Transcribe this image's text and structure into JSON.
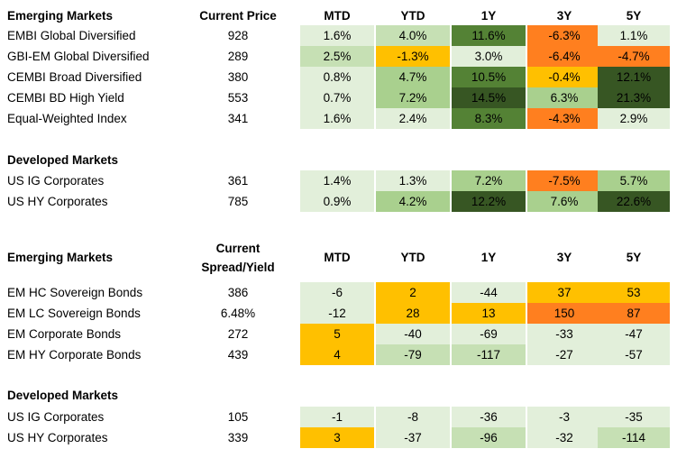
{
  "palette": {
    "g1": "#e2efda",
    "g2": "#c6e0b4",
    "g3": "#a9d08e",
    "g4": "#548235",
    "g5": "#375623",
    "o1": "#ffc000",
    "o2": "#f4b083",
    "o3": "#ff7f1f",
    "white": "#ffffff"
  },
  "top": {
    "header": {
      "title": "Emerging Markets",
      "price": "Current Price",
      "cols": [
        "MTD",
        "YTD",
        "1Y",
        "3Y",
        "5Y"
      ]
    },
    "em_rows": [
      {
        "name": "EMBI Global Diversified",
        "price": "928",
        "cells": [
          {
            "v": "1.6%",
            "c": "g1"
          },
          {
            "v": "4.0%",
            "c": "g2"
          },
          {
            "v": "11.6%",
            "c": "g4"
          },
          {
            "v": "-6.3%",
            "c": "o3"
          },
          {
            "v": "1.1%",
            "c": "g1"
          }
        ]
      },
      {
        "name": "GBI-EM Global Diversified",
        "price": "289",
        "cells": [
          {
            "v": "2.5%",
            "c": "g2"
          },
          {
            "v": "-1.3%",
            "c": "o1"
          },
          {
            "v": "3.0%",
            "c": "g1"
          },
          {
            "v": "-6.4%",
            "c": "o3"
          },
          {
            "v": "-4.7%",
            "c": "o3"
          }
        ]
      },
      {
        "name": "CEMBI Broad Diversified",
        "price": "380",
        "cells": [
          {
            "v": "0.8%",
            "c": "g1"
          },
          {
            "v": "4.7%",
            "c": "g3"
          },
          {
            "v": "10.5%",
            "c": "g4"
          },
          {
            "v": "-0.4%",
            "c": "o1"
          },
          {
            "v": "12.1%",
            "c": "g5"
          }
        ]
      },
      {
        "name": "CEMBI BD High Yield",
        "price": "553",
        "cells": [
          {
            "v": "0.7%",
            "c": "g1"
          },
          {
            "v": "7.2%",
            "c": "g3"
          },
          {
            "v": "14.5%",
            "c": "g5"
          },
          {
            "v": "6.3%",
            "c": "g3"
          },
          {
            "v": "21.3%",
            "c": "g5"
          }
        ]
      },
      {
        "name": "Equal-Weighted Index",
        "price": "341",
        "cells": [
          {
            "v": "1.6%",
            "c": "g1"
          },
          {
            "v": "2.4%",
            "c": "g1"
          },
          {
            "v": "8.3%",
            "c": "g4"
          },
          {
            "v": "-4.3%",
            "c": "o3"
          },
          {
            "v": "2.9%",
            "c": "g1"
          }
        ]
      }
    ],
    "dm_title": "Developed Markets",
    "dm_rows": [
      {
        "name": "US IG Corporates",
        "price": "361",
        "cells": [
          {
            "v": "1.4%",
            "c": "g1"
          },
          {
            "v": "1.3%",
            "c": "g1"
          },
          {
            "v": "7.2%",
            "c": "g3"
          },
          {
            "v": "-7.5%",
            "c": "o3"
          },
          {
            "v": "5.7%",
            "c": "g3"
          }
        ]
      },
      {
        "name": "US HY Corporates",
        "price": "785",
        "cells": [
          {
            "v": "0.9%",
            "c": "g1"
          },
          {
            "v": "4.2%",
            "c": "g3"
          },
          {
            "v": "12.2%",
            "c": "g5"
          },
          {
            "v": "7.6%",
            "c": "g3"
          },
          {
            "v": "22.6%",
            "c": "g5"
          }
        ]
      }
    ]
  },
  "bottom": {
    "header": {
      "title": "Emerging Markets",
      "price_l1": "Current",
      "price_l2": "Spread/Yield",
      "cols": [
        "MTD",
        "YTD",
        "1Y",
        "3Y",
        "5Y"
      ]
    },
    "em_rows": [
      {
        "name": "EM HC Sovereign Bonds",
        "price": "386",
        "cells": [
          {
            "v": "-6",
            "c": "g1"
          },
          {
            "v": "2",
            "c": "o1"
          },
          {
            "v": "-44",
            "c": "g1"
          },
          {
            "v": "37",
            "c": "o1"
          },
          {
            "v": "53",
            "c": "o1"
          }
        ]
      },
      {
        "name": "EM LC Sovereign Bonds",
        "price": "6.48%",
        "cells": [
          {
            "v": "-12",
            "c": "g1"
          },
          {
            "v": "28",
            "c": "o1"
          },
          {
            "v": "13",
            "c": "o1"
          },
          {
            "v": "150",
            "c": "o3"
          },
          {
            "v": "87",
            "c": "o3"
          }
        ]
      },
      {
        "name": "EM Corporate Bonds",
        "price": "272",
        "cells": [
          {
            "v": "5",
            "c": "o1"
          },
          {
            "v": "-40",
            "c": "g1"
          },
          {
            "v": "-69",
            "c": "g1"
          },
          {
            "v": "-33",
            "c": "g1"
          },
          {
            "v": "-47",
            "c": "g1"
          }
        ]
      },
      {
        "name": "EM HY Corporate Bonds",
        "price": "439",
        "cells": [
          {
            "v": "4",
            "c": "o1"
          },
          {
            "v": "-79",
            "c": "g2"
          },
          {
            "v": "-117",
            "c": "g2"
          },
          {
            "v": "-27",
            "c": "g1"
          },
          {
            "v": "-57",
            "c": "g1"
          }
        ]
      }
    ],
    "dm_title": "Developed Markets",
    "dm_rows": [
      {
        "name": "US IG Corporates",
        "price": "105",
        "cells": [
          {
            "v": "-1",
            "c": "g1"
          },
          {
            "v": "-8",
            "c": "g1"
          },
          {
            "v": "-36",
            "c": "g1"
          },
          {
            "v": "-3",
            "c": "g1"
          },
          {
            "v": "-35",
            "c": "g1"
          }
        ]
      },
      {
        "name": "US HY Corporates",
        "price": "339",
        "cells": [
          {
            "v": "3",
            "c": "o1"
          },
          {
            "v": "-37",
            "c": "g1"
          },
          {
            "v": "-96",
            "c": "g2"
          },
          {
            "v": "-32",
            "c": "g1"
          },
          {
            "v": "-114",
            "c": "g2"
          }
        ]
      }
    ]
  }
}
